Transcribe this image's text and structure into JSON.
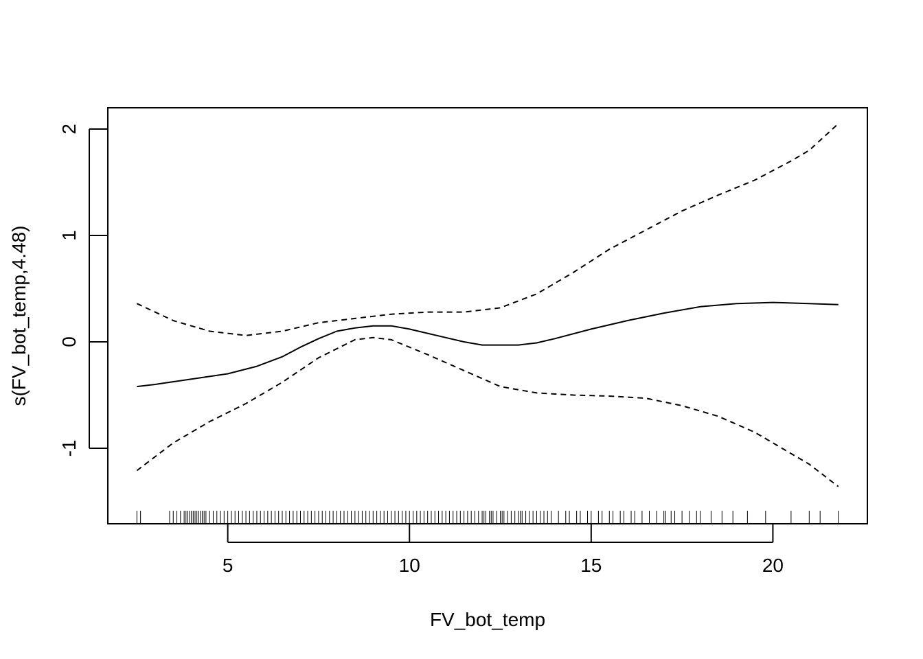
{
  "chart_data": {
    "type": "line",
    "xlabel": "FV_bot_temp",
    "ylabel": "s(FV_bot_temp,4.48)",
    "xlim": [
      1.7,
      22.6
    ],
    "ylim": [
      -1.71,
      2.2
    ],
    "x_ticks": [
      5,
      10,
      15,
      20
    ],
    "y_ticks": [
      -1,
      0,
      1,
      2
    ],
    "grid": false,
    "series": [
      {
        "style": "solid",
        "x": [
          2.5,
          3.0,
          4.0,
          5.0,
          5.8,
          6.5,
          7.0,
          7.5,
          8.0,
          8.5,
          9.0,
          9.5,
          10.0,
          10.5,
          11.0,
          11.5,
          12.0,
          12.5,
          13.0,
          13.5,
          14.0,
          15.0,
          16.0,
          17.0,
          18.0,
          19.0,
          20.0,
          21.0,
          21.8
        ],
        "y": [
          -0.42,
          -0.4,
          -0.35,
          -0.3,
          -0.23,
          -0.14,
          -0.05,
          0.03,
          0.1,
          0.13,
          0.15,
          0.15,
          0.12,
          0.08,
          0.04,
          0.0,
          -0.03,
          -0.03,
          -0.03,
          -0.01,
          0.03,
          0.12,
          0.2,
          0.27,
          0.33,
          0.36,
          0.37,
          0.36,
          0.35
        ]
      },
      {
        "style": "dashed",
        "x": [
          2.5,
          3.5,
          4.5,
          5.5,
          6.5,
          7.5,
          8.5,
          9.5,
          10.5,
          11.5,
          12.5,
          13.5,
          14.5,
          15.5,
          16.5,
          17.5,
          18.5,
          19.5,
          20.5,
          21.0,
          21.8
        ],
        "y": [
          0.36,
          0.2,
          0.1,
          0.06,
          0.1,
          0.18,
          0.22,
          0.26,
          0.28,
          0.28,
          0.32,
          0.45,
          0.65,
          0.87,
          1.05,
          1.23,
          1.38,
          1.52,
          1.7,
          1.8,
          2.05
        ]
      },
      {
        "style": "dashed",
        "x": [
          2.5,
          3.5,
          4.5,
          5.5,
          6.5,
          7.5,
          8.5,
          9.0,
          9.5,
          10.5,
          11.5,
          12.5,
          13.5,
          14.5,
          15.5,
          16.5,
          17.5,
          18.5,
          19.5,
          20.5,
          21.0,
          21.8
        ],
        "y": [
          -1.21,
          -0.95,
          -0.75,
          -0.58,
          -0.38,
          -0.15,
          0.02,
          0.04,
          0.02,
          -0.12,
          -0.27,
          -0.42,
          -0.48,
          -0.5,
          -0.51,
          -0.53,
          -0.6,
          -0.7,
          -0.85,
          -1.05,
          -1.15,
          -1.36
        ]
      }
    ],
    "rug": [
      2.5,
      2.6,
      3.4,
      3.5,
      3.6,
      3.7,
      3.8,
      3.85,
      3.9,
      3.95,
      4.0,
      4.05,
      4.1,
      4.15,
      4.2,
      4.25,
      4.3,
      4.35,
      4.4,
      4.5,
      4.6,
      4.7,
      4.8,
      4.9,
      5.0,
      5.1,
      5.2,
      5.3,
      5.4,
      5.5,
      5.6,
      5.7,
      5.8,
      5.9,
      6.0,
      6.1,
      6.2,
      6.3,
      6.4,
      6.5,
      6.6,
      6.7,
      6.8,
      6.9,
      7.0,
      7.1,
      7.2,
      7.3,
      7.4,
      7.5,
      7.6,
      7.7,
      7.8,
      7.9,
      8.0,
      8.1,
      8.2,
      8.3,
      8.4,
      8.5,
      8.6,
      8.7,
      8.8,
      8.9,
      9.0,
      9.1,
      9.2,
      9.3,
      9.4,
      9.5,
      9.6,
      9.7,
      9.8,
      9.9,
      10.0,
      10.1,
      10.2,
      10.3,
      10.4,
      10.5,
      10.6,
      10.7,
      10.8,
      10.9,
      11.0,
      11.1,
      11.2,
      11.3,
      11.4,
      11.5,
      11.6,
      11.7,
      11.8,
      11.9,
      12.0,
      12.05,
      12.1,
      12.2,
      12.25,
      12.3,
      12.4,
      12.5,
      12.55,
      12.6,
      12.7,
      12.8,
      12.9,
      13.0,
      13.05,
      13.1,
      13.2,
      13.3,
      13.4,
      13.5,
      13.6,
      13.7,
      13.8,
      13.9,
      14.1,
      14.3,
      14.4,
      14.6,
      14.7,
      14.9,
      15.0,
      15.2,
      15.3,
      15.5,
      15.6,
      15.8,
      15.9,
      16.1,
      16.2,
      16.4,
      16.6,
      16.8,
      17.0,
      17.05,
      17.2,
      17.3,
      17.5,
      17.7,
      17.9,
      18.0,
      18.3,
      18.6,
      18.9,
      19.3,
      19.8,
      20.5,
      21.0,
      21.3,
      21.8
    ]
  }
}
